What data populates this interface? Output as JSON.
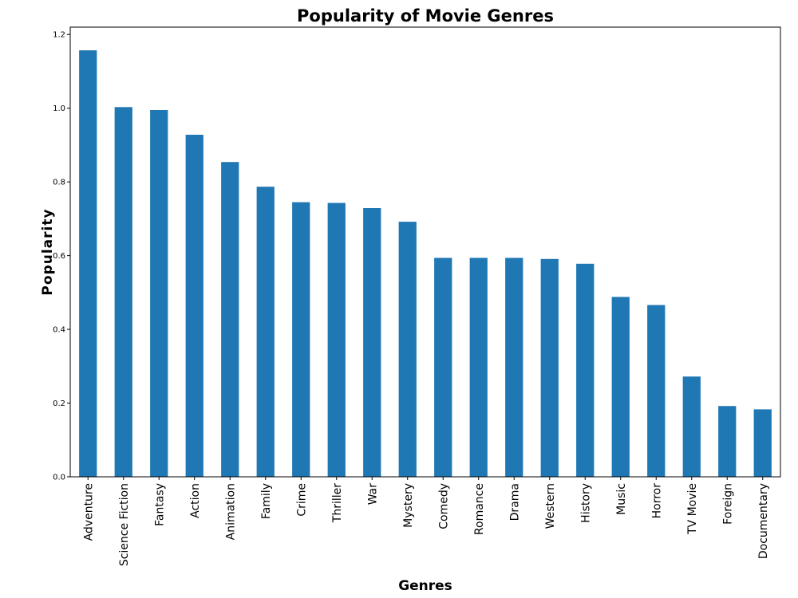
{
  "chart_data": {
    "type": "bar",
    "title": "Popularity of Movie Genres",
    "xlabel": "Genres",
    "ylabel": "Popularity",
    "ylim": [
      0,
      1.22
    ],
    "yticks": [
      "0.0",
      "0.2",
      "0.4",
      "0.6",
      "0.8",
      "1.0",
      "1.2"
    ],
    "ytick_values": [
      0.0,
      0.2,
      0.4,
      0.6,
      0.8,
      1.0,
      1.2
    ],
    "categories": [
      "Adventure",
      "Science Fiction",
      "Fantasy",
      "Action",
      "Animation",
      "Family",
      "Crime",
      "Thriller",
      "War",
      "Mystery",
      "Comedy",
      "Romance",
      "Drama",
      "Western",
      "History",
      "Music",
      "Horror",
      "TV Movie",
      "Foreign",
      "Documentary"
    ],
    "values": [
      1.157,
      1.003,
      0.995,
      0.928,
      0.854,
      0.787,
      0.745,
      0.743,
      0.729,
      0.692,
      0.594,
      0.594,
      0.594,
      0.591,
      0.578,
      0.488,
      0.466,
      0.272,
      0.192,
      0.183
    ],
    "bar_color": "#1f77b4",
    "grid": false,
    "legend": "none"
  }
}
